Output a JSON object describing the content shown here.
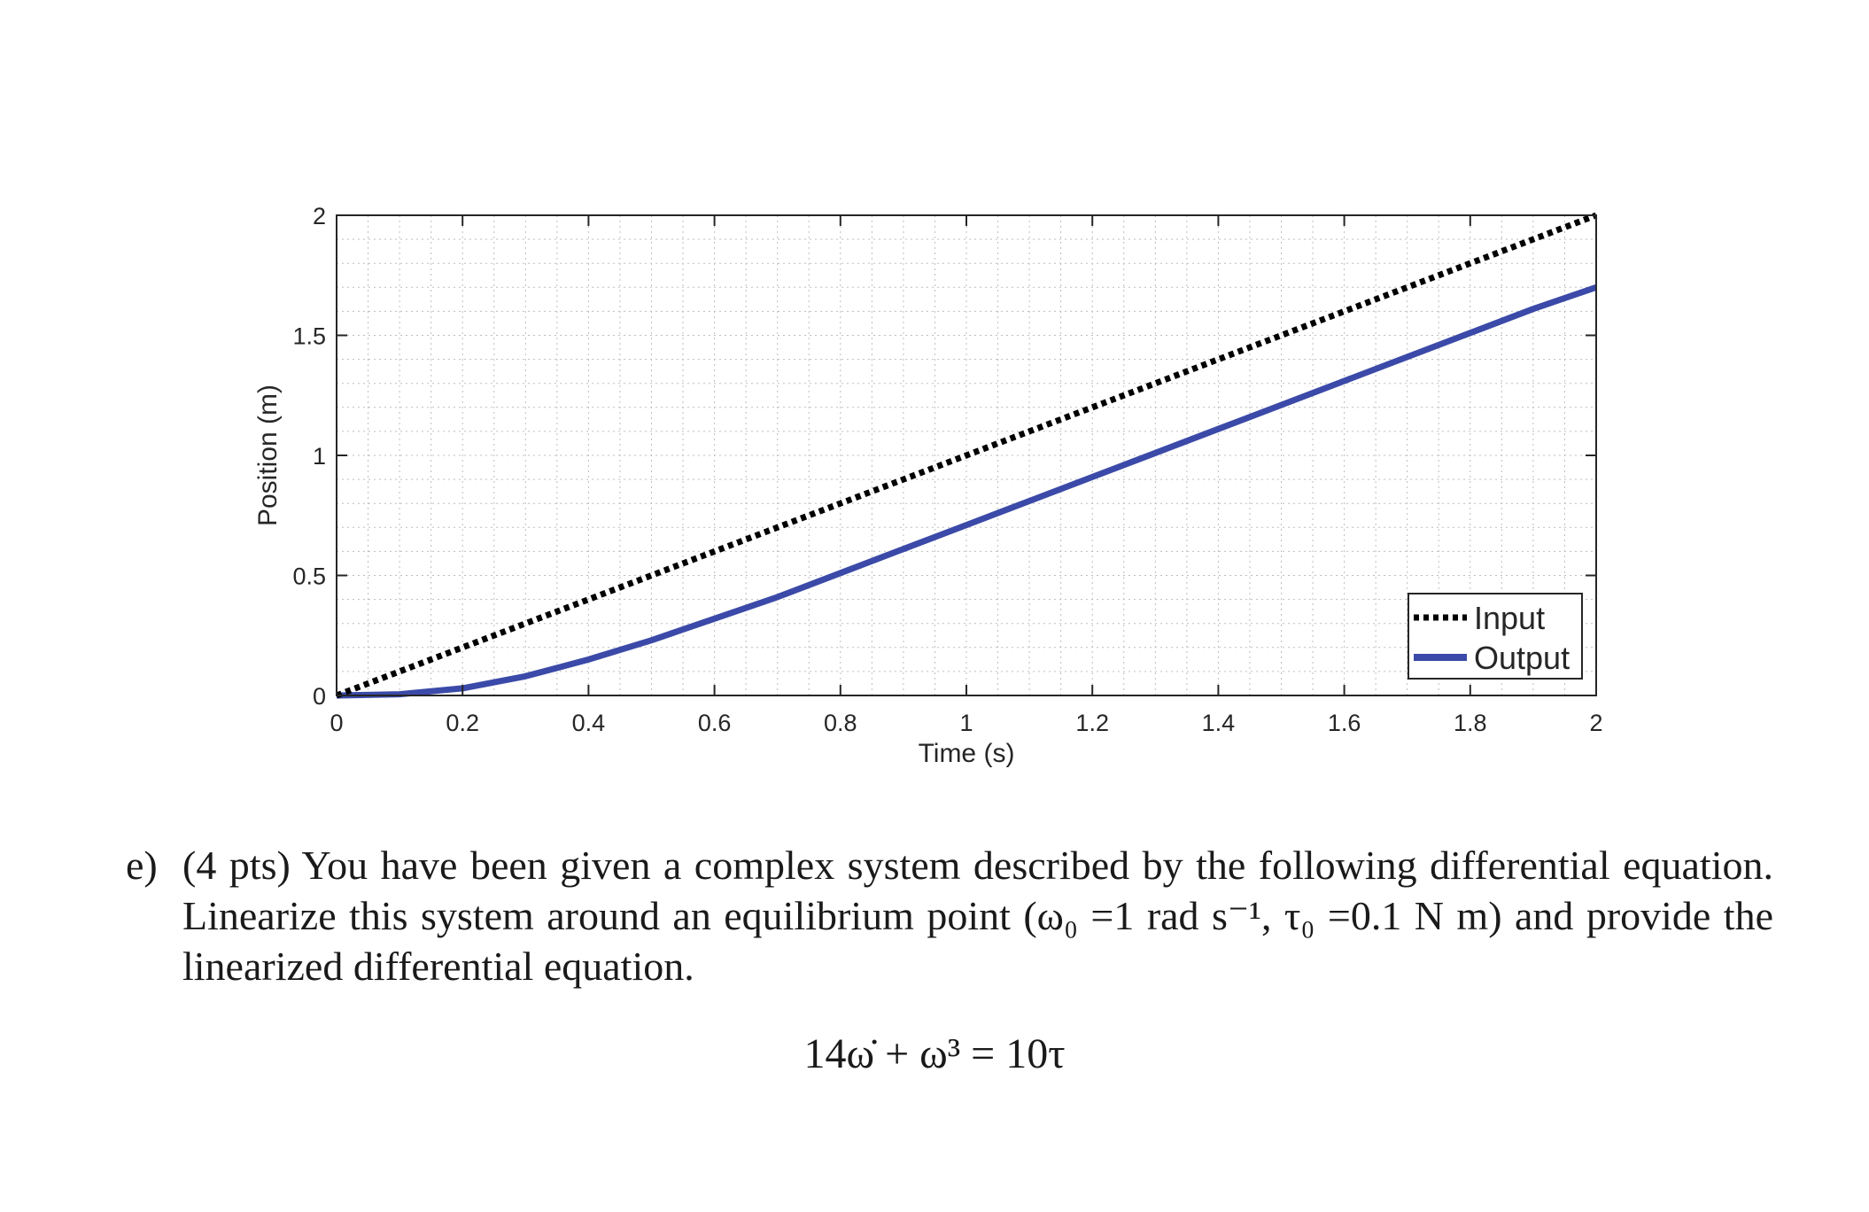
{
  "chart_data": {
    "type": "line",
    "xlabel": "Time (s)",
    "ylabel": "Position (m)",
    "xlim": [
      0,
      2
    ],
    "ylim": [
      0,
      2
    ],
    "x_ticks": [
      "0",
      "0.2",
      "0.4",
      "0.6",
      "0.8",
      "1",
      "1.2",
      "1.4",
      "1.6",
      "1.8",
      "2"
    ],
    "y_ticks": [
      "0",
      "0.5",
      "1",
      "1.5",
      "2"
    ],
    "grid": "minor dotted",
    "legend_position": "bottom-right",
    "series": [
      {
        "name": "Input",
        "style": "dotted",
        "color": "#000000",
        "x": [
          0,
          2
        ],
        "y": [
          0,
          2
        ]
      },
      {
        "name": "Output",
        "style": "solid",
        "color": "#3b4aa8",
        "x": [
          0,
          0.1,
          0.2,
          0.3,
          0.4,
          0.5,
          0.6,
          0.7,
          0.8,
          0.9,
          1.0,
          1.1,
          1.2,
          1.3,
          1.4,
          1.5,
          1.6,
          1.7,
          1.8,
          1.9,
          2.0
        ],
        "y": [
          0,
          0.005,
          0.03,
          0.08,
          0.15,
          0.23,
          0.32,
          0.41,
          0.51,
          0.61,
          0.71,
          0.81,
          0.91,
          1.01,
          1.11,
          1.21,
          1.31,
          1.41,
          1.51,
          1.61,
          1.7
        ]
      }
    ]
  },
  "question": {
    "letter": "e)",
    "text": "(4 pts) You have been given a complex system described by the following differential equation. Linearize this system around an equilibrium point (ω₀ =1 rad s⁻¹, τ₀ =0.1 N m) and provide the linearized differential equation.",
    "equation": "14ω̇ + ω³ = 10τ"
  }
}
